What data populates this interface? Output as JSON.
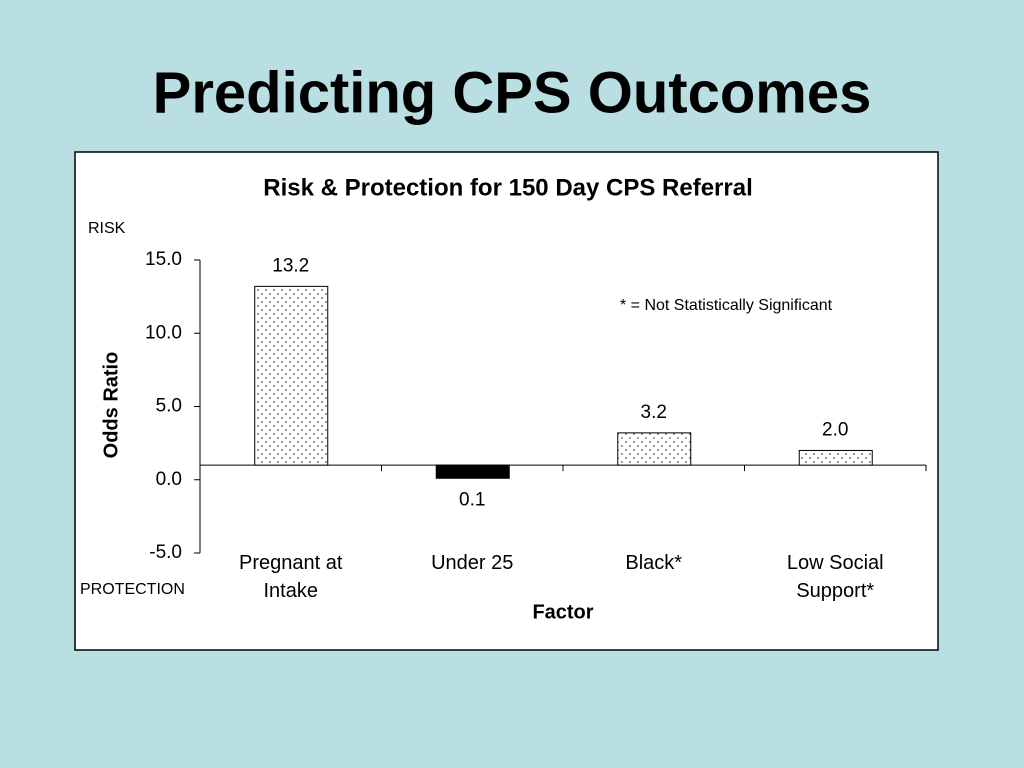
{
  "slide_title": "Predicting CPS Outcomes",
  "chart_data": {
    "type": "bar",
    "title": "Risk & Protection for 150 Day CPS Referral",
    "categories": [
      "Pregnant at Intake",
      "Under 25",
      "Black*",
      "Low Social Support*"
    ],
    "values": [
      13.2,
      0.1,
      3.2,
      2.0
    ],
    "value_labels": [
      "13.2",
      "0.1",
      "3.2",
      "2.0"
    ],
    "bar_styles": [
      "dotted",
      "solid",
      "dotted",
      "dotted"
    ],
    "color": "#000000",
    "x_axis_crosses": 1,
    "xlabel": "Factor",
    "ylabel": "Odds Ratio",
    "ylim": [
      -5,
      15
    ],
    "yticks": [
      {
        "value": -5,
        "label": "-5.0"
      },
      {
        "value": 0,
        "label": "0.0"
      },
      {
        "value": 5,
        "label": "5.0"
      },
      {
        "value": 10,
        "label": "10.0"
      },
      {
        "value": 15,
        "label": "15.0"
      }
    ],
    "annotations": [
      "RISK",
      "PROTECTION",
      "* = Not Statistically Significant"
    ],
    "grid": false
  }
}
